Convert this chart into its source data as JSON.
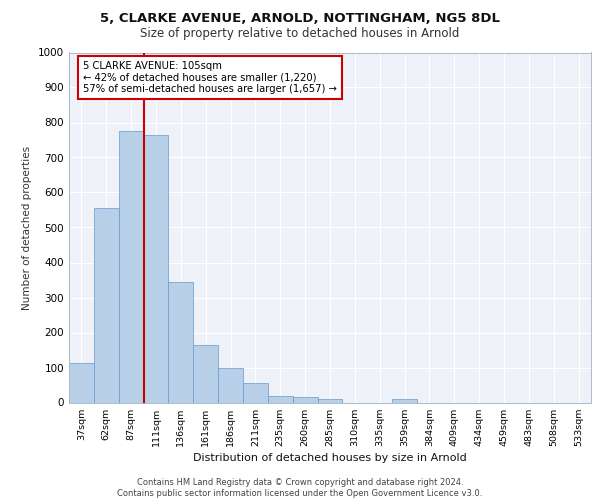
{
  "title1": "5, CLARKE AVENUE, ARNOLD, NOTTINGHAM, NG5 8DL",
  "title2": "Size of property relative to detached houses in Arnold",
  "xlabel": "Distribution of detached houses by size in Arnold",
  "ylabel": "Number of detached properties",
  "bar_labels": [
    "37sqm",
    "62sqm",
    "87sqm",
    "111sqm",
    "136sqm",
    "161sqm",
    "186sqm",
    "211sqm",
    "235sqm",
    "260sqm",
    "285sqm",
    "310sqm",
    "335sqm",
    "359sqm",
    "384sqm",
    "409sqm",
    "434sqm",
    "459sqm",
    "483sqm",
    "508sqm",
    "533sqm"
  ],
  "all_bar_values": [
    112,
    557,
    775,
    765,
    343,
    165,
    98,
    55,
    20,
    15,
    10,
    0,
    0,
    10,
    0,
    0,
    0,
    0,
    0,
    0,
    0
  ],
  "bar_color": "#b8cfe8",
  "bar_edge_color": "#6699cc",
  "vline_color": "#cc0000",
  "vline_pos": 2.5,
  "annotation_box_text": "5 CLARKE AVENUE: 105sqm\n← 42% of detached houses are smaller (1,220)\n57% of semi-detached houses are larger (1,657) →",
  "box_color": "#cc0000",
  "ylim": [
    0,
    1000
  ],
  "yticks": [
    0,
    100,
    200,
    300,
    400,
    500,
    600,
    700,
    800,
    900,
    1000
  ],
  "footer_line1": "Contains HM Land Registry data © Crown copyright and database right 2024.",
  "footer_line2": "Contains public sector information licensed under the Open Government Licence v3.0.",
  "bg_color": "#eef2f8",
  "grid_color": "#ffffff",
  "title1_fontsize": 9.5,
  "title2_fontsize": 8.5
}
